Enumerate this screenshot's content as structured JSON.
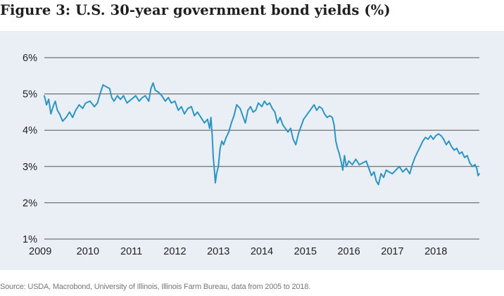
{
  "figure": {
    "title": "Figure 3: U.S. 30-year government bond yields (%)",
    "source": "Source: USDA, Macrobond, University of Illinois, Illinois Farm Bureau, data from 2005 to 2018."
  },
  "colors": {
    "line": "#2b95c4",
    "panel_background": "#e9eff4",
    "gridline": "#555555"
  },
  "chart_data": {
    "type": "line",
    "title": "Figure 3: U.S. 30-year government bond yields (%)",
    "xlabel": "",
    "ylabel": "",
    "ylim": [
      1,
      6
    ],
    "xlim": [
      2009.0,
      2019.0
    ],
    "grid": true,
    "y_ticks": [
      {
        "value": 6,
        "label": "6%"
      },
      {
        "value": 5,
        "label": "5%"
      },
      {
        "value": 4,
        "label": "4%"
      },
      {
        "value": 3,
        "label": "3%"
      },
      {
        "value": 2,
        "label": "2%"
      },
      {
        "value": 1,
        "label": "1%"
      }
    ],
    "x_ticks": [
      {
        "value": 2009,
        "label": "2009"
      },
      {
        "value": 2010,
        "label": "2010"
      },
      {
        "value": 2011,
        "label": "2011"
      },
      {
        "value": 2012,
        "label": "2012"
      },
      {
        "value": 2013,
        "label": "2013"
      },
      {
        "value": 2014,
        "label": "2014"
      },
      {
        "value": 2015,
        "label": "2015"
      },
      {
        "value": 2016,
        "label": "2016"
      },
      {
        "value": 2017,
        "label": "2017"
      },
      {
        "value": 2018,
        "label": "2018"
      }
    ],
    "series": [
      {
        "points": [
          [
            2009.0,
            4.95
          ],
          [
            2009.05,
            4.7
          ],
          [
            2009.1,
            4.85
          ],
          [
            2009.15,
            4.45
          ],
          [
            2009.2,
            4.65
          ],
          [
            2009.25,
            4.8
          ],
          [
            2009.3,
            4.55
          ],
          [
            2009.35,
            4.45
          ],
          [
            2009.42,
            4.25
          ],
          [
            2009.5,
            4.35
          ],
          [
            2009.58,
            4.5
          ],
          [
            2009.65,
            4.35
          ],
          [
            2009.72,
            4.55
          ],
          [
            2009.8,
            4.7
          ],
          [
            2009.88,
            4.6
          ],
          [
            2009.95,
            4.75
          ],
          [
            2010.05,
            4.8
          ],
          [
            2010.15,
            4.65
          ],
          [
            2010.22,
            4.75
          ],
          [
            2010.28,
            5.0
          ],
          [
            2010.35,
            5.25
          ],
          [
            2010.42,
            5.2
          ],
          [
            2010.5,
            5.15
          ],
          [
            2010.55,
            4.9
          ],
          [
            2010.6,
            4.8
          ],
          [
            2010.68,
            4.95
          ],
          [
            2010.75,
            4.85
          ],
          [
            2010.82,
            4.95
          ],
          [
            2010.9,
            4.75
          ],
          [
            2011.0,
            4.85
          ],
          [
            2011.1,
            4.95
          ],
          [
            2011.18,
            4.8
          ],
          [
            2011.25,
            4.9
          ],
          [
            2011.32,
            4.95
          ],
          [
            2011.4,
            4.8
          ],
          [
            2011.45,
            5.15
          ],
          [
            2011.5,
            5.3
          ],
          [
            2011.55,
            5.1
          ],
          [
            2011.62,
            5.05
          ],
          [
            2011.7,
            4.95
          ],
          [
            2011.78,
            4.8
          ],
          [
            2011.85,
            4.9
          ],
          [
            2011.92,
            4.75
          ],
          [
            2012.0,
            4.8
          ],
          [
            2012.08,
            4.55
          ],
          [
            2012.15,
            4.65
          ],
          [
            2012.22,
            4.45
          ],
          [
            2012.3,
            4.6
          ],
          [
            2012.38,
            4.65
          ],
          [
            2012.45,
            4.4
          ],
          [
            2012.52,
            4.5
          ],
          [
            2012.6,
            4.35
          ],
          [
            2012.68,
            4.2
          ],
          [
            2012.75,
            4.3
          ],
          [
            2012.8,
            4.05
          ],
          [
            2012.83,
            4.35
          ],
          [
            2012.86,
            3.85
          ],
          [
            2012.88,
            3.3
          ],
          [
            2012.91,
            2.9
          ],
          [
            2012.93,
            2.55
          ],
          [
            2012.96,
            2.8
          ],
          [
            2013.0,
            3.0
          ],
          [
            2013.04,
            3.5
          ],
          [
            2013.08,
            3.7
          ],
          [
            2013.12,
            3.6
          ],
          [
            2013.18,
            3.8
          ],
          [
            2013.24,
            3.95
          ],
          [
            2013.3,
            4.2
          ],
          [
            2013.36,
            4.4
          ],
          [
            2013.42,
            4.7
          ],
          [
            2013.5,
            4.6
          ],
          [
            2013.56,
            4.4
          ],
          [
            2013.62,
            4.2
          ],
          [
            2013.68,
            4.55
          ],
          [
            2013.74,
            4.65
          ],
          [
            2013.8,
            4.5
          ],
          [
            2013.86,
            4.55
          ],
          [
            2013.92,
            4.75
          ],
          [
            2014.0,
            4.65
          ],
          [
            2014.06,
            4.8
          ],
          [
            2014.12,
            4.7
          ],
          [
            2014.18,
            4.75
          ],
          [
            2014.24,
            4.6
          ],
          [
            2014.3,
            4.5
          ],
          [
            2014.36,
            4.2
          ],
          [
            2014.42,
            4.35
          ],
          [
            2014.48,
            4.15
          ],
          [
            2014.54,
            4.05
          ],
          [
            2014.6,
            3.95
          ],
          [
            2014.66,
            4.05
          ],
          [
            2014.72,
            3.75
          ],
          [
            2014.78,
            3.6
          ],
          [
            2014.84,
            3.9
          ],
          [
            2014.9,
            4.1
          ],
          [
            2014.96,
            4.3
          ],
          [
            2015.02,
            4.4
          ],
          [
            2015.08,
            4.5
          ],
          [
            2015.14,
            4.6
          ],
          [
            2015.2,
            4.7
          ],
          [
            2015.26,
            4.55
          ],
          [
            2015.32,
            4.65
          ],
          [
            2015.38,
            4.6
          ],
          [
            2015.44,
            4.45
          ],
          [
            2015.5,
            4.35
          ],
          [
            2015.56,
            4.4
          ],
          [
            2015.62,
            4.35
          ],
          [
            2015.66,
            4.15
          ],
          [
            2015.7,
            3.7
          ],
          [
            2015.74,
            3.5
          ],
          [
            2015.78,
            3.35
          ],
          [
            2015.82,
            3.15
          ],
          [
            2015.86,
            2.9
          ],
          [
            2015.9,
            3.3
          ],
          [
            2015.94,
            3.0
          ],
          [
            2016.0,
            3.15
          ],
          [
            2016.08,
            3.05
          ],
          [
            2016.16,
            3.2
          ],
          [
            2016.24,
            3.05
          ],
          [
            2016.32,
            3.1
          ],
          [
            2016.4,
            3.15
          ],
          [
            2016.46,
            2.95
          ],
          [
            2016.52,
            2.75
          ],
          [
            2016.58,
            2.85
          ],
          [
            2016.63,
            2.6
          ],
          [
            2016.68,
            2.5
          ],
          [
            2016.74,
            2.8
          ],
          [
            2016.8,
            2.7
          ],
          [
            2016.86,
            2.9
          ],
          [
            2016.92,
            2.85
          ],
          [
            2017.0,
            2.8
          ],
          [
            2017.08,
            2.9
          ],
          [
            2017.16,
            3.0
          ],
          [
            2017.24,
            2.85
          ],
          [
            2017.32,
            2.95
          ],
          [
            2017.4,
            2.8
          ],
          [
            2017.46,
            3.05
          ],
          [
            2017.52,
            3.25
          ],
          [
            2017.58,
            3.4
          ],
          [
            2017.64,
            3.55
          ],
          [
            2017.7,
            3.7
          ],
          [
            2017.76,
            3.8
          ],
          [
            2017.82,
            3.75
          ],
          [
            2017.88,
            3.85
          ],
          [
            2017.94,
            3.75
          ],
          [
            2018.0,
            3.85
          ],
          [
            2018.06,
            3.9
          ],
          [
            2018.12,
            3.85
          ],
          [
            2018.18,
            3.75
          ],
          [
            2018.24,
            3.6
          ],
          [
            2018.3,
            3.7
          ],
          [
            2018.36,
            3.55
          ],
          [
            2018.42,
            3.45
          ],
          [
            2018.48,
            3.5
          ],
          [
            2018.54,
            3.35
          ],
          [
            2018.6,
            3.4
          ],
          [
            2018.66,
            3.25
          ],
          [
            2018.72,
            3.3
          ],
          [
            2018.78,
            3.1
          ],
          [
            2018.84,
            3.0
          ],
          [
            2018.9,
            3.05
          ],
          [
            2018.94,
            2.95
          ],
          [
            2018.97,
            2.75
          ],
          [
            2019.0,
            2.8
          ]
        ]
      }
    ]
  }
}
